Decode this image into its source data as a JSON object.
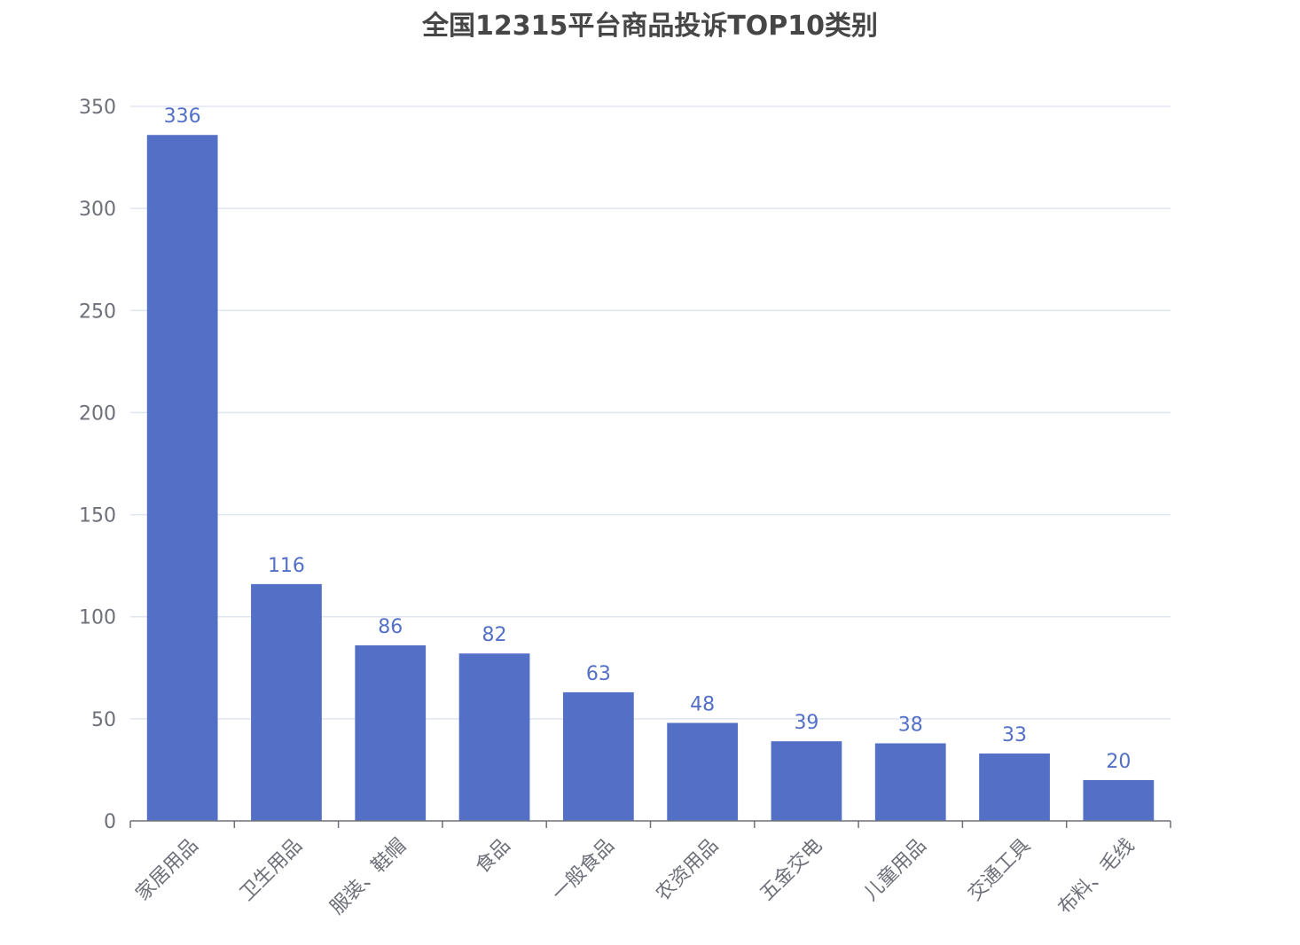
{
  "chart_data": {
    "type": "bar",
    "title": "全国12315平台商品投诉TOP10类别",
    "categories": [
      "家居用品",
      "卫生用品",
      "服装、鞋帽",
      "食品",
      "一般食品",
      "农资用品",
      "五金交电",
      "儿童用品",
      "交通工具",
      "布料、毛线"
    ],
    "values": [
      336,
      116,
      86,
      82,
      63,
      48,
      39,
      38,
      33,
      20
    ],
    "xlabel": "",
    "ylabel": "",
    "ylim": [
      0,
      350
    ],
    "yticks": [
      0,
      50,
      100,
      150,
      200,
      250,
      300,
      350
    ],
    "grid": true,
    "data_labels": true,
    "colors": {
      "bar": "#5470c6",
      "value_label": "#5470c6",
      "grid": "#e0e6f1",
      "axis": "#6e7079"
    }
  }
}
